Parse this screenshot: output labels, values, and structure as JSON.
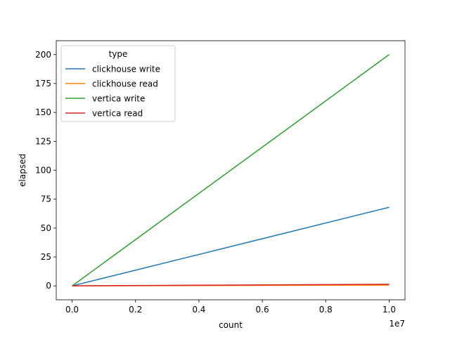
{
  "chart_data": {
    "type": "line",
    "title": "",
    "xlabel": "count",
    "ylabel": "elapsed",
    "x_offset_label": "1e7",
    "xlim": [
      -500000,
      10500000
    ],
    "ylim": [
      -12,
      212
    ],
    "x_ticks": [
      0,
      2000000,
      4000000,
      6000000,
      8000000,
      10000000
    ],
    "x_tick_labels": [
      "0.0",
      "0.2",
      "0.4",
      "0.6",
      "0.8",
      "1.0"
    ],
    "y_ticks": [
      0,
      25,
      50,
      75,
      100,
      125,
      150,
      175,
      200
    ],
    "y_tick_labels": [
      "0",
      "25",
      "50",
      "75",
      "100",
      "125",
      "150",
      "175",
      "200"
    ],
    "grid": false,
    "legend": {
      "title": "type",
      "placement": "top-left"
    },
    "series": [
      {
        "name": "clickhouse write",
        "color": "#1f77b4",
        "x": [
          0,
          1000,
          10000,
          100000,
          1000000,
          10000000
        ],
        "y": [
          0.01,
          0.02,
          0.07,
          0.7,
          6.8,
          68
        ]
      },
      {
        "name": "clickhouse read",
        "color": "#ff7f0e",
        "x": [
          0,
          1000,
          10000,
          100000,
          1000000,
          10000000
        ],
        "y": [
          0.01,
          0.01,
          0.01,
          0.02,
          0.08,
          0.7
        ]
      },
      {
        "name": "vertica write",
        "color": "#2ca02c",
        "x": [
          0,
          1000,
          10000,
          100000,
          1000000,
          10000000
        ],
        "y": [
          0.05,
          0.07,
          0.2,
          2,
          20,
          200
        ]
      },
      {
        "name": "vertica read",
        "color": "#d62728",
        "x": [
          0,
          1000,
          10000,
          100000,
          1000000,
          10000000
        ],
        "y": [
          0.02,
          0.02,
          0.03,
          0.05,
          0.2,
          1.4
        ]
      }
    ]
  }
}
